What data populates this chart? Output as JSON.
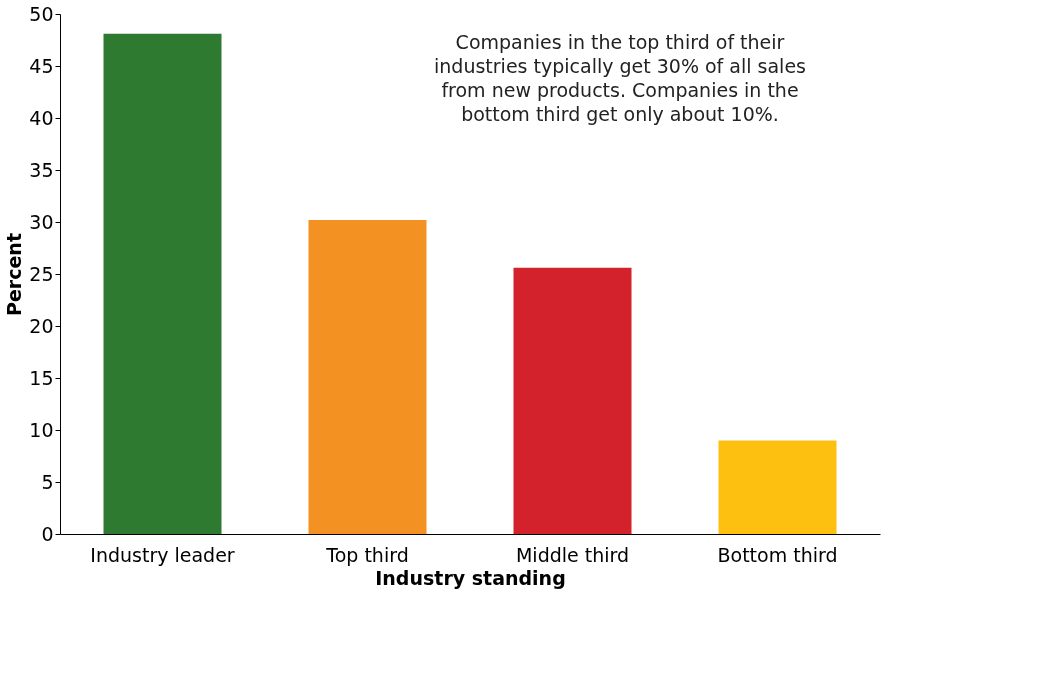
{
  "chart_data": {
    "type": "bar",
    "xlabel": "Industry standing",
    "ylabel": "Percent",
    "categories": [
      "Industry leader",
      "Top third",
      "Middle third",
      "Bottom third"
    ],
    "values": [
      48.1,
      30.2,
      25.6,
      9.0
    ],
    "colors": [
      "#2e7a30",
      "#f39222",
      "#d3222b",
      "#fdc010"
    ],
    "ylim": [
      0,
      50
    ],
    "yticks": [
      0,
      5,
      10,
      15,
      20,
      25,
      30,
      35,
      40,
      45,
      50
    ],
    "grid": false,
    "annotations": [
      "Companies in the top third of their\nindustries typically get 30% of all sales\nfrom new products. Companies in the\nbottom third get only about 10%."
    ]
  }
}
